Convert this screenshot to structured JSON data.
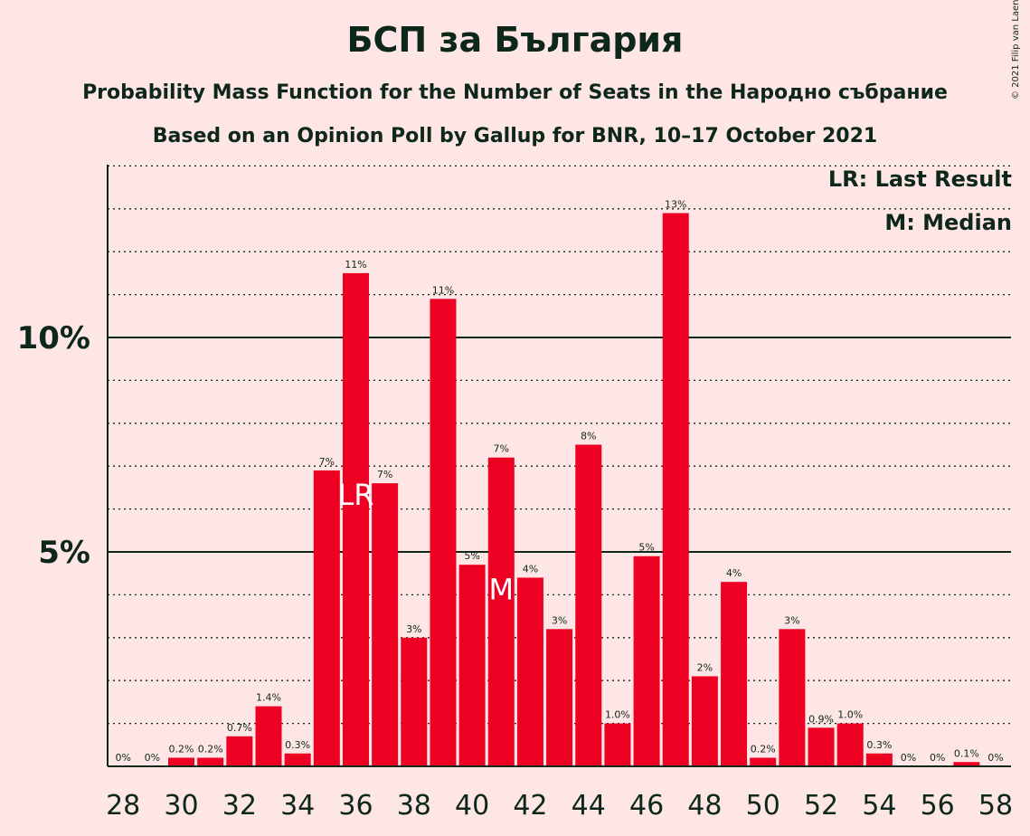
{
  "title": "БСП за България",
  "subtitle1": "Probability Mass Function for the Number of Seats in the Народно събрание",
  "subtitle2": "Based on an Opinion Poll by Gallup for BNR, 10–17 October 2021",
  "copyright": "© 2021 Filip van Laenen",
  "legend": {
    "lr": "LR: Last Result",
    "m": "M: Median"
  },
  "colors": {
    "background": "#FFE6E6",
    "bar": "#EE0022",
    "text": "#0D2818"
  },
  "chart_data": {
    "type": "bar",
    "x": [
      28,
      29,
      30,
      31,
      32,
      33,
      34,
      35,
      36,
      37,
      38,
      39,
      40,
      41,
      42,
      43,
      44,
      45,
      46,
      47,
      48,
      49,
      50,
      51,
      52,
      53,
      54,
      55,
      56,
      57,
      58
    ],
    "values": [
      0,
      0,
      0.2,
      0.2,
      0.7,
      1.4,
      0.3,
      6.9,
      11.5,
      6.6,
      3.0,
      10.9,
      4.7,
      7.2,
      4.4,
      3.2,
      7.5,
      1.0,
      4.9,
      12.9,
      2.1,
      4.3,
      0.2,
      3.2,
      0.9,
      1.0,
      0.3,
      0,
      0,
      0.1,
      0
    ],
    "labels": [
      "0%",
      "0%",
      "0.2%",
      "0.2%",
      "0.7%",
      "1.4%",
      "0.3%",
      "7%",
      "11%",
      "7%",
      "3%",
      "11%",
      "5%",
      "7%",
      "4%",
      "3%",
      "8%",
      "1.0%",
      "5%",
      "13%",
      "2%",
      "4%",
      "0.2%",
      "3%",
      "0.9%",
      "1.0%",
      "0.3%",
      "0%",
      "0%",
      "0.1%",
      "0%"
    ],
    "x_tick_labels": [
      "28",
      "30",
      "32",
      "34",
      "36",
      "38",
      "40",
      "42",
      "44",
      "46",
      "48",
      "50",
      "52",
      "54",
      "56",
      "58"
    ],
    "y_tick_labels": [
      "5%",
      "10%"
    ],
    "y_ticks": [
      5,
      10
    ],
    "ylim": [
      0,
      14
    ],
    "gridlines_dotted_every": 1,
    "last_result_seat": 36,
    "last_result_mark": "LR",
    "median_seat": 41,
    "median_mark": "M"
  }
}
